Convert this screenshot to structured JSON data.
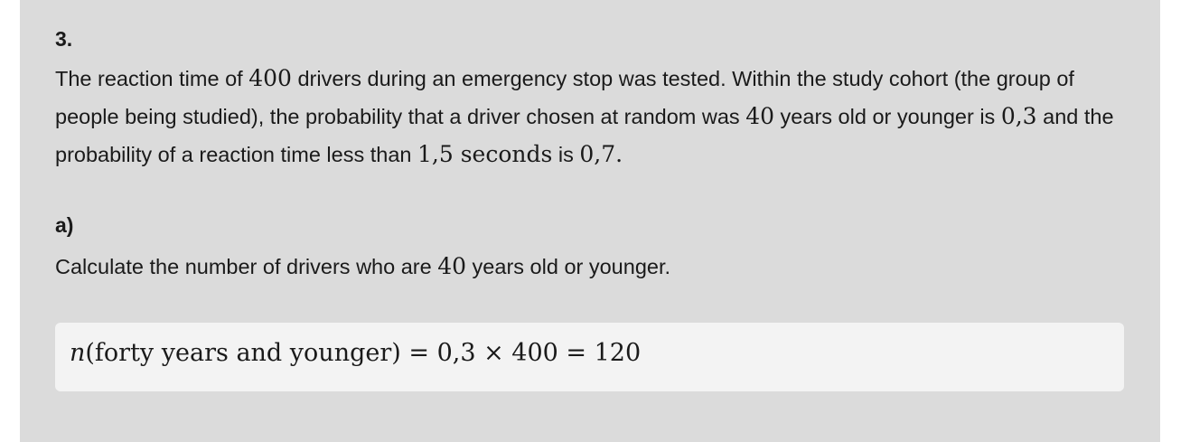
{
  "question": {
    "number": "3.",
    "stem": {
      "t1": "The reaction time of ",
      "m1": "400",
      "t2": " drivers during an emergency stop was tested. Within the study cohort (the group of people being studied), the probability that a driver chosen at random was ",
      "m2": "40",
      "t3": " years old or younger is ",
      "m3": "0,3",
      "t4": " and the probability of a reaction time less than ",
      "m4": "1,5 seconds",
      "t5": " is ",
      "m5": "0,7",
      "t6": "."
    }
  },
  "part_a": {
    "label": "a)",
    "t1": "Calculate the number of drivers who are ",
    "m1": "40",
    "t2": " years old or younger.",
    "answer": {
      "var": "n",
      "expr": "(forty years and younger) = 0,3 × 400 = 120"
    }
  }
}
